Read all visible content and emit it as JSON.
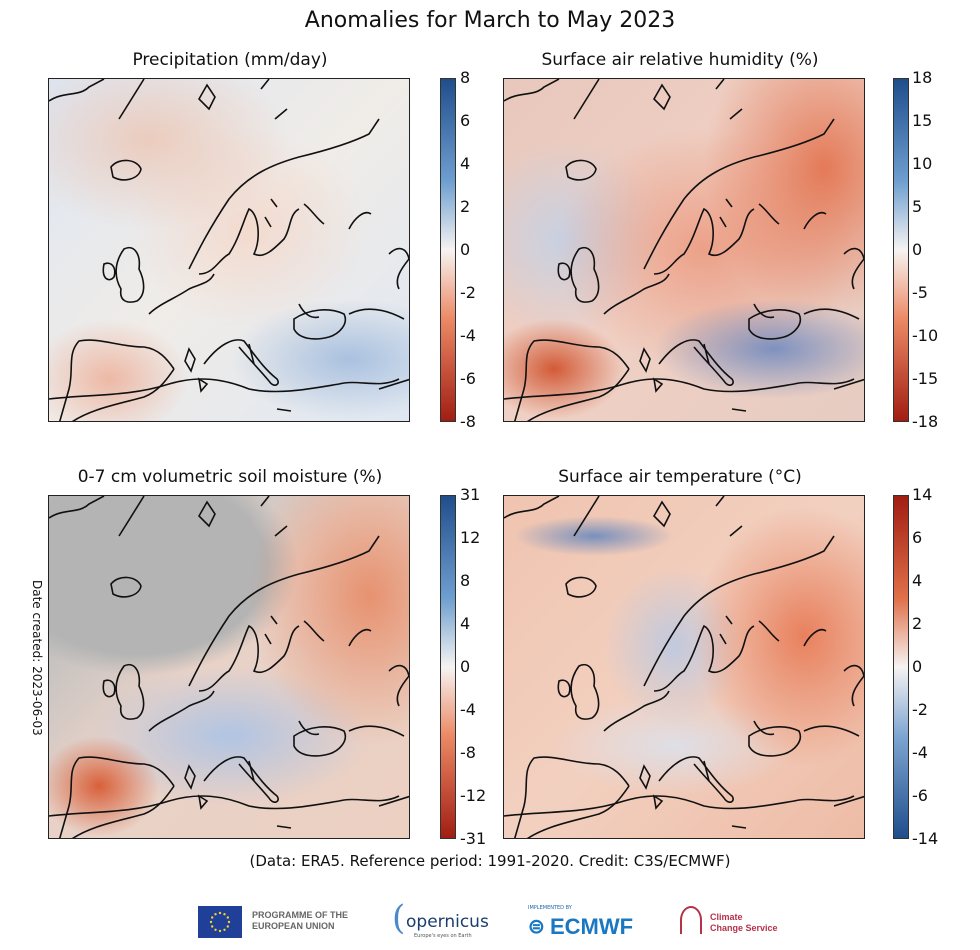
{
  "title": "Anomalies for March to May 2023",
  "panels": [
    {
      "title": "Precipitation (mm/day)",
      "ticks": [
        "8",
        "6",
        "4",
        "2",
        "0",
        "-2",
        "-4",
        "-6",
        "-8"
      ],
      "top_color": "#1f4e8c",
      "bottom_color": "#a11d12"
    },
    {
      "title": "Surface air relative humidity (%)",
      "ticks": [
        "18",
        "15",
        "10",
        "5",
        "0",
        "-5",
        "-10",
        "-15",
        "-18"
      ],
      "top_color": "#1f4e8c",
      "bottom_color": "#a11d12"
    },
    {
      "title": "0-7 cm volumetric soil moisture (%)",
      "ticks": [
        "31",
        "12",
        "8",
        "4",
        "0",
        "-4",
        "-8",
        "-12",
        "-31"
      ],
      "top_color": "#1f4e8c",
      "bottom_color": "#a11d12"
    },
    {
      "title": "Surface air temperature (°C)",
      "ticks": [
        "14",
        "6",
        "4",
        "2",
        "0",
        "-2",
        "-4",
        "-6",
        "-14"
      ],
      "top_color": "#a11d12",
      "bottom_color": "#1f4e8c"
    }
  ],
  "credit": "(Data: ERA5.  Reference period: 1991-2020.  Credit: C3S/ECMWF)",
  "date_created": "Date created: 2023-06-03",
  "logos": {
    "eu": "PROGRAMME OF THE EUROPEAN UNION",
    "copernicus": "opernicus",
    "copernicus_tagline": "Europe's eyes on Earth",
    "ecmwf_top": "IMPLEMENTED BY",
    "ecmwf": "ECMWF",
    "c3s_line1": "Climate",
    "c3s_line2": "Change Service"
  }
}
